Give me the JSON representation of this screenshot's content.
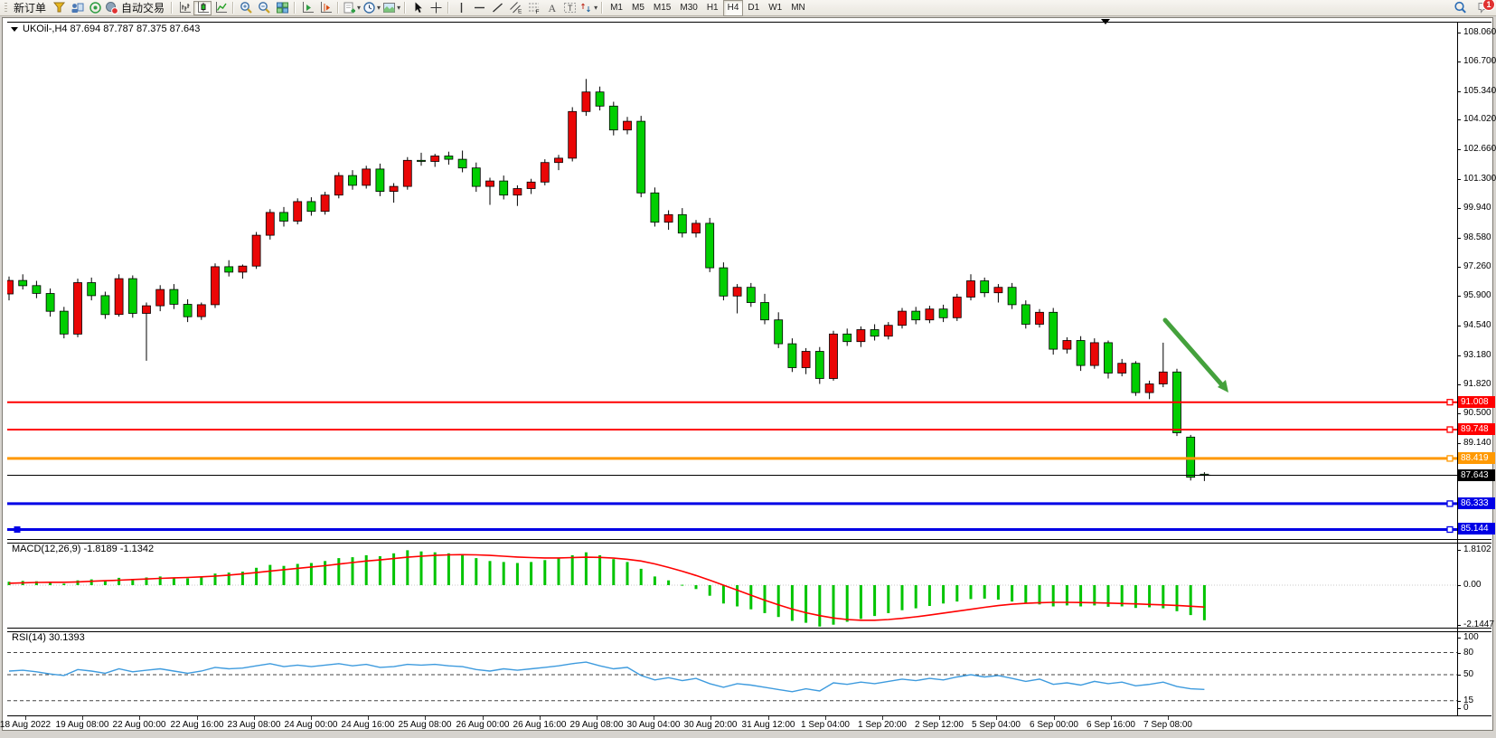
{
  "colors": {
    "bull": "#EA0606",
    "bear": "#00CE00",
    "candle_outline": "#000000",
    "macd_hist": "#00C400",
    "macd_signal": "#FF0000",
    "rsi_line": "#3E9BDE",
    "arrow": "#44A13C",
    "badge_text": "#FFFFFF"
  },
  "toolbar": {
    "groups": [
      {
        "items": [
          {
            "name": "new-order-button",
            "label": "新订单"
          },
          {
            "name": "market-watch-icon",
            "glyph": "funnel"
          },
          {
            "name": "terminal-icon",
            "glyph": "terminal"
          },
          {
            "name": "strategy-tester-icon",
            "glyph": "tester"
          },
          {
            "name": "autotrading-button",
            "glyph": "autotrade",
            "label": "自动交易"
          }
        ]
      },
      {
        "items": [
          {
            "name": "bar-chart-button",
            "glyph": "bars"
          },
          {
            "name": "candlestick-chart-button",
            "glyph": "candles",
            "active": true
          },
          {
            "name": "line-chart-button",
            "glyph": "linechart"
          }
        ]
      },
      {
        "items": [
          {
            "name": "zoom-in-button",
            "glyph": "zoomin"
          },
          {
            "name": "zoom-out-button",
            "glyph": "zoomout"
          },
          {
            "name": "tile-windows-button",
            "glyph": "tile"
          }
        ]
      },
      {
        "items": [
          {
            "name": "auto-scroll-button",
            "glyph": "autoscroll"
          },
          {
            "name": "chart-shift-button",
            "glyph": "chartshift"
          }
        ]
      },
      {
        "items": [
          {
            "name": "new-chart-button",
            "glyph": "newchart",
            "dropdown": true
          },
          {
            "name": "periods-button",
            "glyph": "clock",
            "dropdown": true
          },
          {
            "name": "templates-button",
            "glyph": "template",
            "dropdown": true
          }
        ]
      },
      {
        "items": [
          {
            "name": "cursor-button",
            "glyph": "cursor"
          },
          {
            "name": "crosshair-button",
            "glyph": "crosshair"
          }
        ]
      },
      {
        "items": [
          {
            "name": "vertical-line-button",
            "glyph": "vline"
          },
          {
            "name": "horizontal-line-button",
            "glyph": "hline"
          },
          {
            "name": "trendline-button",
            "glyph": "trend"
          },
          {
            "name": "equidistant-channel-button",
            "glyph": "channel"
          },
          {
            "name": "fibonacci-button",
            "glyph": "fibo"
          },
          {
            "name": "text-button",
            "glyph": "textA"
          },
          {
            "name": "label-button",
            "glyph": "labelT"
          },
          {
            "name": "arrows-button",
            "glyph": "arrows",
            "dropdown": true
          }
        ]
      }
    ],
    "timeframes": {
      "items": [
        "M1",
        "M5",
        "M15",
        "M30",
        "H1",
        "H4",
        "D1",
        "W1",
        "MN"
      ],
      "active": "H4"
    },
    "right": [
      {
        "name": "search-button",
        "glyph": "search"
      },
      {
        "name": "chat-button",
        "glyph": "chat",
        "badge": "1"
      }
    ]
  },
  "chart": {
    "title": "UKOil-,H4  87.694 87.787 87.375 87.643",
    "macd_label": "MACD(12,26,9) -1.8189 -1.1342",
    "rsi_label": "RSI(14) 30.1393",
    "y_ticks": [
      "108.060",
      "106.700",
      "105.340",
      "104.020",
      "102.660",
      "101.300",
      "99.940",
      "98.580",
      "97.260",
      "95.900",
      "94.540",
      "93.180",
      "91.820",
      "90.500",
      "89.140"
    ],
    "macd_ticks": [
      "1.8102",
      "0.00",
      "-2.1447"
    ],
    "rsi_ticks": [
      "100",
      "80",
      "50",
      "15",
      "0"
    ],
    "lines": [
      {
        "price": "91.008",
        "color": "#FF0000",
        "w": 2
      },
      {
        "price": "89.748",
        "color": "#FF0000",
        "w": 2
      },
      {
        "price": "88.419",
        "color": "#FF9902",
        "w": 3
      },
      {
        "price": "87.643",
        "color": "#000000",
        "w": 1
      },
      {
        "price": "86.333",
        "color": "#0000E6",
        "w": 3
      },
      {
        "price": "85.144",
        "color": "#0000E6",
        "w": 3
      }
    ]
  },
  "chart_data": {
    "type": "candlestick",
    "symbol": "UKOil-",
    "period": "H4",
    "last_ohlc": {
      "open": 87.694,
      "high": 87.787,
      "low": 87.375,
      "close": 87.643
    },
    "ylim": [
      84.67,
      108.54
    ],
    "x_labels": [
      "18 Aug 2022",
      "19 Aug 08:00",
      "22 Aug 00:00",
      "22 Aug 16:00",
      "23 Aug 08:00",
      "24 Aug 00:00",
      "24 Aug 16:00",
      "25 Aug 08:00",
      "26 Aug 00:00",
      "26 Aug 16:00",
      "29 Aug 08:00",
      "30 Aug 04:00",
      "30 Aug 20:00",
      "31 Aug 12:00",
      "1 Sep 04:00",
      "1 Sep 20:00",
      "2 Sep 12:00",
      "5 Sep 04:00",
      "6 Sep 00:00",
      "6 Sep 16:00",
      "7 Sep 08:00"
    ],
    "ohlc": [
      [
        96.0,
        96.8,
        95.7,
        96.62
      ],
      [
        96.62,
        96.9,
        96.2,
        96.38
      ],
      [
        96.38,
        96.6,
        95.8,
        96.02
      ],
      [
        96.02,
        96.25,
        94.95,
        95.2
      ],
      [
        95.2,
        95.4,
        93.95,
        94.15
      ],
      [
        94.15,
        96.7,
        94.0,
        96.52
      ],
      [
        96.52,
        96.75,
        95.7,
        95.92
      ],
      [
        95.92,
        96.1,
        94.85,
        95.05
      ],
      [
        95.05,
        96.9,
        94.95,
        96.7
      ],
      [
        96.7,
        96.85,
        94.9,
        95.1
      ],
      [
        95.1,
        95.6,
        92.92,
        95.45
      ],
      [
        95.45,
        96.4,
        95.2,
        96.2
      ],
      [
        96.2,
        96.45,
        95.3,
        95.52
      ],
      [
        95.52,
        95.75,
        94.7,
        94.95
      ],
      [
        94.95,
        95.6,
        94.8,
        95.5
      ],
      [
        95.5,
        97.4,
        95.35,
        97.25
      ],
      [
        97.25,
        97.55,
        96.8,
        97.0
      ],
      [
        97.0,
        97.35,
        96.7,
        97.28
      ],
      [
        97.28,
        98.85,
        97.15,
        98.7
      ],
      [
        98.7,
        99.9,
        98.5,
        99.75
      ],
      [
        99.75,
        100.0,
        99.1,
        99.35
      ],
      [
        99.35,
        100.4,
        99.2,
        100.25
      ],
      [
        100.25,
        100.45,
        99.6,
        99.8
      ],
      [
        99.8,
        100.7,
        99.65,
        100.55
      ],
      [
        100.55,
        101.6,
        100.4,
        101.45
      ],
      [
        101.45,
        101.7,
        100.8,
        101.0
      ],
      [
        101.0,
        101.9,
        100.85,
        101.75
      ],
      [
        101.75,
        102.0,
        100.5,
        100.72
      ],
      [
        100.72,
        101.1,
        100.2,
        100.95
      ],
      [
        100.95,
        102.3,
        100.8,
        102.15
      ],
      [
        102.15,
        102.5,
        101.9,
        102.1
      ],
      [
        102.1,
        102.45,
        101.85,
        102.35
      ],
      [
        102.35,
        102.55,
        101.95,
        102.2
      ],
      [
        102.2,
        102.6,
        101.6,
        101.8
      ],
      [
        101.8,
        102.05,
        100.7,
        100.95
      ],
      [
        100.95,
        101.35,
        100.1,
        101.2
      ],
      [
        101.2,
        101.45,
        100.35,
        100.55
      ],
      [
        100.55,
        101.0,
        100.05,
        100.85
      ],
      [
        100.85,
        101.3,
        100.6,
        101.15
      ],
      [
        101.15,
        102.2,
        101.0,
        102.05
      ],
      [
        102.05,
        102.4,
        101.7,
        102.25
      ],
      [
        102.25,
        104.6,
        102.1,
        104.4
      ],
      [
        104.4,
        105.9,
        104.2,
        105.3
      ],
      [
        105.3,
        105.55,
        104.45,
        104.65
      ],
      [
        104.65,
        104.85,
        103.3,
        103.55
      ],
      [
        103.55,
        104.15,
        103.35,
        103.95
      ],
      [
        103.95,
        104.2,
        100.45,
        100.65
      ],
      [
        100.65,
        100.9,
        99.1,
        99.3
      ],
      [
        99.3,
        99.85,
        98.95,
        99.65
      ],
      [
        99.65,
        99.95,
        98.6,
        98.8
      ],
      [
        98.8,
        99.4,
        98.6,
        99.25
      ],
      [
        99.25,
        99.5,
        97.0,
        97.2
      ],
      [
        97.2,
        97.45,
        95.7,
        95.9
      ],
      [
        95.9,
        96.45,
        95.1,
        96.3
      ],
      [
        96.3,
        96.5,
        95.4,
        95.6
      ],
      [
        95.6,
        96.0,
        94.6,
        94.8
      ],
      [
        94.8,
        95.15,
        93.5,
        93.7
      ],
      [
        93.7,
        93.95,
        92.4,
        92.6
      ],
      [
        92.6,
        93.5,
        92.3,
        93.35
      ],
      [
        93.35,
        93.55,
        91.85,
        92.1
      ],
      [
        92.1,
        94.3,
        92.0,
        94.15
      ],
      [
        94.15,
        94.4,
        93.6,
        93.8
      ],
      [
        93.8,
        94.5,
        93.55,
        94.35
      ],
      [
        94.35,
        94.6,
        93.85,
        94.05
      ],
      [
        94.05,
        94.7,
        93.9,
        94.55
      ],
      [
        94.55,
        95.35,
        94.4,
        95.2
      ],
      [
        95.2,
        95.4,
        94.6,
        94.8
      ],
      [
        94.8,
        95.45,
        94.65,
        95.3
      ],
      [
        95.3,
        95.5,
        94.7,
        94.9
      ],
      [
        94.9,
        96.0,
        94.75,
        95.85
      ],
      [
        95.85,
        96.9,
        95.7,
        96.6
      ],
      [
        96.6,
        96.75,
        95.85,
        96.05
      ],
      [
        96.05,
        96.45,
        95.6,
        96.3
      ],
      [
        96.3,
        96.5,
        95.3,
        95.5
      ],
      [
        95.5,
        95.7,
        94.4,
        94.6
      ],
      [
        94.6,
        95.3,
        94.45,
        95.15
      ],
      [
        95.15,
        95.35,
        93.2,
        93.45
      ],
      [
        93.45,
        94.0,
        93.25,
        93.85
      ],
      [
        93.85,
        94.05,
        92.45,
        92.7
      ],
      [
        92.7,
        93.95,
        92.55,
        93.75
      ],
      [
        93.75,
        93.85,
        92.1,
        92.35
      ],
      [
        92.35,
        93.0,
        92.2,
        92.8
      ],
      [
        92.8,
        92.9,
        91.3,
        91.45
      ],
      [
        91.45,
        92.0,
        91.15,
        91.85
      ],
      [
        91.85,
        93.75,
        91.7,
        92.4
      ],
      [
        92.4,
        92.55,
        89.45,
        89.6
      ],
      [
        89.4,
        89.5,
        87.4,
        87.55
      ],
      [
        87.694,
        87.787,
        87.375,
        87.643
      ]
    ],
    "indicators": [
      {
        "name": "MACD",
        "params": "12,26,9",
        "main_value": -1.8189,
        "signal_value": -1.1342,
        "scale_ticks": [
          "1.8102",
          "0.00",
          "-2.1447"
        ],
        "ylim": [
          -2.25,
          2.25
        ],
        "histogram": [
          0.18,
          0.22,
          0.2,
          0.12,
          0.08,
          0.25,
          0.3,
          0.26,
          0.38,
          0.33,
          0.4,
          0.45,
          0.4,
          0.35,
          0.42,
          0.6,
          0.65,
          0.7,
          0.9,
          1.05,
          1.0,
          1.1,
          1.15,
          1.25,
          1.4,
          1.45,
          1.55,
          1.5,
          1.65,
          1.8102,
          1.75,
          1.7,
          1.65,
          1.55,
          1.4,
          1.25,
          1.2,
          1.15,
          1.2,
          1.3,
          1.4,
          1.55,
          1.7,
          1.55,
          1.35,
          1.2,
          0.85,
          0.45,
          0.25,
          0.02,
          -0.2,
          -0.55,
          -0.95,
          -1.1,
          -1.25,
          -1.45,
          -1.65,
          -1.85,
          -1.95,
          -2.1447,
          -2.05,
          -1.9,
          -1.75,
          -1.6,
          -1.45,
          -1.3,
          -1.2,
          -1.08,
          -0.95,
          -0.85,
          -0.72,
          -0.7,
          -0.75,
          -0.85,
          -0.95,
          -1.0,
          -1.1,
          -1.05,
          -1.1,
          -1.05,
          -1.12,
          -1.1,
          -1.18,
          -1.15,
          -1.2,
          -1.35,
          -1.55,
          -1.8189
        ],
        "signal": [
          0.1,
          0.12,
          0.14,
          0.15,
          0.15,
          0.17,
          0.2,
          0.23,
          0.26,
          0.29,
          0.32,
          0.35,
          0.38,
          0.4,
          0.43,
          0.47,
          0.52,
          0.58,
          0.65,
          0.73,
          0.8,
          0.87,
          0.94,
          1.01,
          1.09,
          1.17,
          1.25,
          1.31,
          1.38,
          1.45,
          1.5,
          1.54,
          1.57,
          1.58,
          1.57,
          1.54,
          1.5,
          1.46,
          1.43,
          1.41,
          1.41,
          1.43,
          1.45,
          1.44,
          1.4,
          1.34,
          1.25,
          1.1,
          0.92,
          0.72,
          0.5,
          0.26,
          0.0,
          -0.26,
          -0.52,
          -0.78,
          -1.02,
          -1.24,
          -1.43,
          -1.58,
          -1.7,
          -1.78,
          -1.82,
          -1.82,
          -1.78,
          -1.72,
          -1.64,
          -1.55,
          -1.45,
          -1.35,
          -1.25,
          -1.15,
          -1.06,
          -0.99,
          -0.94,
          -0.91,
          -0.89,
          -0.89,
          -0.9,
          -0.91,
          -0.93,
          -0.95,
          -0.97,
          -1.0,
          -1.02,
          -1.05,
          -1.09,
          -1.1342
        ]
      },
      {
        "name": "RSI",
        "params": "14",
        "value": 30.1393,
        "scale_ticks": [
          "100",
          "80",
          "50",
          "15",
          "0"
        ],
        "levels": [
          80,
          50,
          15
        ],
        "ylim": [
          0,
          100
        ],
        "series": [
          55,
          56,
          54,
          51,
          49,
          57,
          55,
          52,
          58,
          54,
          56,
          58,
          55,
          52,
          55,
          60,
          58,
          59,
          62,
          65,
          61,
          63,
          61,
          63,
          65,
          62,
          64,
          60,
          61,
          64,
          63,
          64,
          62,
          61,
          57,
          55,
          58,
          56,
          58,
          60,
          62,
          65,
          67,
          62,
          58,
          60,
          49,
          43,
          46,
          42,
          45,
          38,
          33,
          38,
          36,
          33,
          30,
          27,
          31,
          28,
          39,
          37,
          40,
          38,
          41,
          44,
          42,
          45,
          43,
          47,
          50,
          47,
          49,
          45,
          41,
          44,
          37,
          39,
          36,
          41,
          38,
          40,
          35,
          37,
          40,
          34,
          31,
          30.1393
        ]
      }
    ],
    "annotations": [
      {
        "type": "arrow",
        "name": "downtrend-arrow",
        "from_xy": [
          1289,
          354
        ],
        "to_xy": [
          1353,
          427
        ],
        "color": "#44A13C"
      }
    ]
  }
}
